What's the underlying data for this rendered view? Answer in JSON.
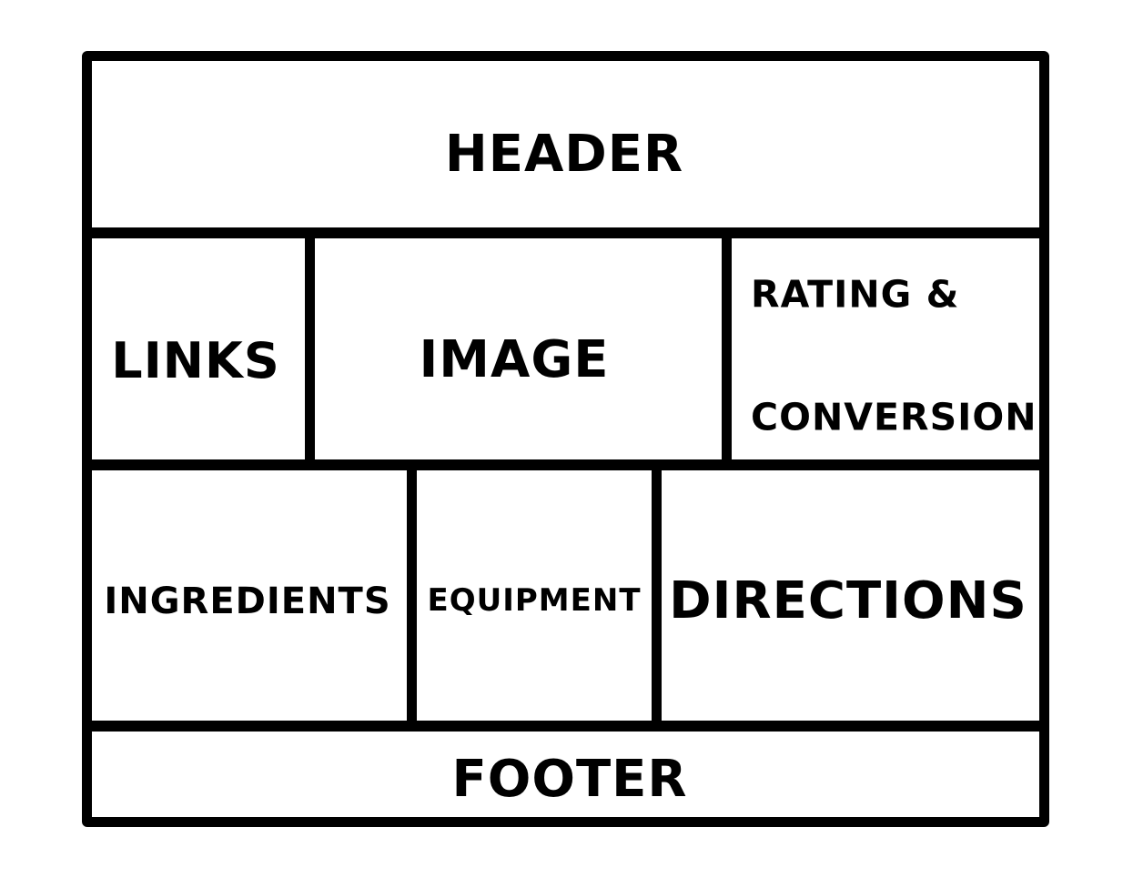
{
  "diagram": {
    "header": "HEADER",
    "links": "LINKS",
    "image": "IMAGE",
    "rating_line1": "RATING &",
    "rating_line2": "CONVERSION",
    "ingredients": "INGREDIENTS",
    "equipment": "EQUIPMENT",
    "directions": "DIRECTIONS",
    "footer": "FOOTER"
  }
}
